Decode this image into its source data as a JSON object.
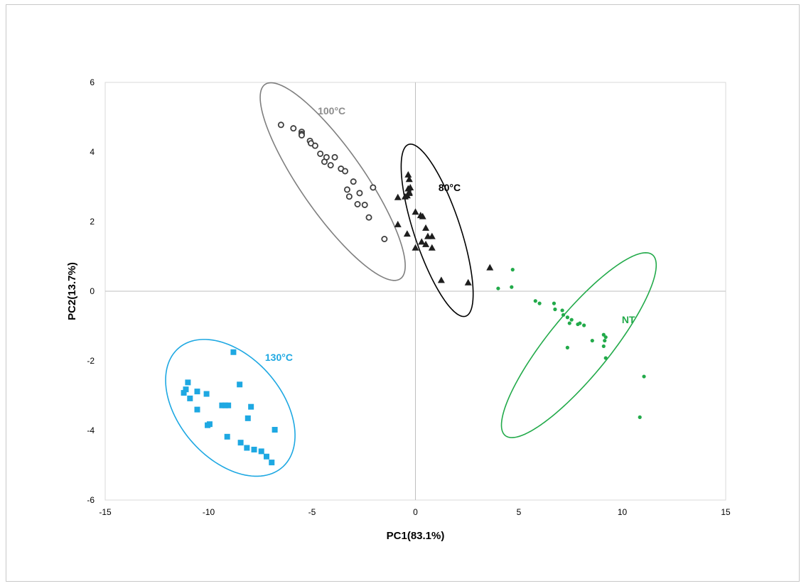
{
  "chart_data": {
    "type": "scatter",
    "title": "",
    "xlabel": "PC1(83.1%)",
    "ylabel": "PC2(13.7%)",
    "xlim": [
      -15,
      15
    ],
    "ylim": [
      -6,
      6
    ],
    "xticks": [
      -15,
      -10,
      -5,
      0,
      5,
      10,
      15
    ],
    "yticks": [
      -6,
      -4,
      -2,
      0,
      2,
      4,
      6
    ],
    "xtick_labels": [
      "-15",
      "-10",
      "-5",
      "0",
      "5",
      "10",
      "15"
    ],
    "ytick_labels": [
      "-6",
      "-4",
      "-2",
      "0",
      "2",
      "4",
      "6"
    ],
    "grid": false,
    "legend": "none",
    "series": [
      {
        "name": "100°C",
        "marker": "open-circle",
        "color": "#3f3f3f",
        "label_color": "#8c8c8c",
        "ellipse_color": "#7f7f7f",
        "points": [
          [
            -6.5,
            4.78
          ],
          [
            -5.9,
            4.68
          ],
          [
            -5.5,
            4.58
          ],
          [
            -5.5,
            4.52
          ],
          [
            -5.5,
            4.48
          ],
          [
            -5.1,
            4.32
          ],
          [
            -5.05,
            4.25
          ],
          [
            -4.85,
            4.18
          ],
          [
            -4.6,
            3.95
          ],
          [
            -4.4,
            3.72
          ],
          [
            -4.3,
            3.85
          ],
          [
            -3.9,
            3.85
          ],
          [
            -4.1,
            3.62
          ],
          [
            -3.6,
            3.52
          ],
          [
            -3.4,
            3.45
          ],
          [
            -3.3,
            2.92
          ],
          [
            -3.2,
            2.72
          ],
          [
            -3.0,
            3.15
          ],
          [
            -2.8,
            2.5
          ],
          [
            -2.7,
            2.82
          ],
          [
            -2.45,
            2.48
          ],
          [
            -2.25,
            2.12
          ],
          [
            -2.05,
            2.98
          ],
          [
            -1.5,
            1.5
          ]
        ],
        "ellipse": {
          "cx": -4.0,
          "cy": 3.15,
          "rx": 4.35,
          "ry": 1.2,
          "angle_deg": -38
        }
      },
      {
        "name": "80°C",
        "marker": "filled-triangle",
        "color": "#1e1e1e",
        "label_color": "#000000",
        "ellipse_color": "#000000",
        "points": [
          [
            -0.35,
            3.35
          ],
          [
            -0.3,
            3.22
          ],
          [
            -0.35,
            2.95
          ],
          [
            -0.3,
            2.85
          ],
          [
            -0.4,
            2.75
          ],
          [
            -0.3,
            2.82
          ],
          [
            -0.85,
            2.7
          ],
          [
            -0.5,
            2.72
          ],
          [
            -0.25,
            2.98
          ],
          [
            0.0,
            2.28
          ],
          [
            0.25,
            2.18
          ],
          [
            0.35,
            2.15
          ],
          [
            -0.85,
            1.92
          ],
          [
            -0.4,
            1.65
          ],
          [
            0.5,
            1.82
          ],
          [
            0.6,
            1.58
          ],
          [
            0.8,
            1.58
          ],
          [
            0.3,
            1.42
          ],
          [
            0.5,
            1.35
          ],
          [
            0.0,
            1.25
          ],
          [
            0.8,
            1.25
          ],
          [
            1.25,
            0.32
          ],
          [
            2.55,
            0.25
          ],
          [
            3.6,
            0.68
          ]
        ],
        "ellipse": {
          "cx": 1.05,
          "cy": 1.75,
          "rx": 2.85,
          "ry": 1.02,
          "angle_deg": -58
        }
      },
      {
        "name": "NT",
        "marker": "filled-dot",
        "color": "#22aa4a",
        "label_color": "#22aa4a",
        "ellipse_color": "#22aa4a",
        "points": [
          [
            4.7,
            0.62
          ],
          [
            4.65,
            0.12
          ],
          [
            4.0,
            0.08
          ],
          [
            5.8,
            -0.28
          ],
          [
            6.0,
            -0.35
          ],
          [
            6.7,
            -0.35
          ],
          [
            6.75,
            -0.52
          ],
          [
            7.1,
            -0.55
          ],
          [
            7.15,
            -0.68
          ],
          [
            7.35,
            -0.75
          ],
          [
            7.45,
            -0.92
          ],
          [
            7.55,
            -0.82
          ],
          [
            7.85,
            -0.95
          ],
          [
            7.95,
            -0.92
          ],
          [
            8.15,
            -0.98
          ],
          [
            7.35,
            -1.62
          ],
          [
            8.55,
            -1.42
          ],
          [
            9.1,
            -1.25
          ],
          [
            9.2,
            -1.32
          ],
          [
            9.15,
            -1.42
          ],
          [
            9.1,
            -1.58
          ],
          [
            9.2,
            -1.92
          ],
          [
            11.05,
            -2.45
          ],
          [
            10.85,
            -3.62
          ]
        ],
        "ellipse": {
          "cx": 7.9,
          "cy": -1.55,
          "rx": 4.45,
          "ry": 1.12,
          "angle_deg": 34
        }
      },
      {
        "name": "130°C",
        "marker": "filled-square",
        "color": "#1ea8e2",
        "label_color": "#1ea8e2",
        "ellipse_color": "#1ea8e2",
        "points": [
          [
            -8.8,
            -1.75
          ],
          [
            -11.0,
            -2.62
          ],
          [
            -11.1,
            -2.82
          ],
          [
            -11.2,
            -2.92
          ],
          [
            -10.55,
            -2.88
          ],
          [
            -10.1,
            -2.95
          ],
          [
            -10.9,
            -3.08
          ],
          [
            -10.55,
            -3.4
          ],
          [
            -9.35,
            -3.28
          ],
          [
            -9.2,
            -3.28
          ],
          [
            -9.05,
            -3.28
          ],
          [
            -7.95,
            -3.32
          ],
          [
            -8.5,
            -2.68
          ],
          [
            -8.1,
            -3.65
          ],
          [
            -9.95,
            -3.82
          ],
          [
            -10.05,
            -3.85
          ],
          [
            -9.1,
            -4.18
          ],
          [
            -6.8,
            -3.98
          ],
          [
            -8.45,
            -4.35
          ],
          [
            -8.15,
            -4.5
          ],
          [
            -7.8,
            -4.55
          ],
          [
            -7.45,
            -4.6
          ],
          [
            -7.2,
            -4.75
          ],
          [
            -6.95,
            -4.92
          ]
        ],
        "ellipse": {
          "cx": -8.95,
          "cy": -3.35,
          "rx": 3.27,
          "ry": 1.72,
          "angle_deg": -20
        }
      }
    ],
    "group_labels": [
      {
        "text": "100°C",
        "x": -4.05,
        "y": 5.08,
        "series": "100°C"
      },
      {
        "text": "80°C",
        "x": 1.65,
        "y": 2.88,
        "series": "80°C"
      },
      {
        "text": "NT",
        "x": 10.3,
        "y": -0.92,
        "series": "NT"
      },
      {
        "text": "130°C",
        "x": -6.6,
        "y": -2.0,
        "series": "130°C"
      }
    ]
  },
  "colors": {
    "axis": "#bfbfbf",
    "plot_border": "#d9d9d9",
    "text": "#000000"
  }
}
